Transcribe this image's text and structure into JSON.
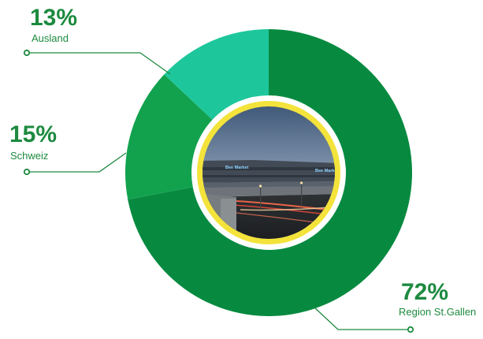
{
  "colors": {
    "dark_green": "#078a40",
    "mid_green": "#12a24e",
    "teal_green": "#1ec79b",
    "label_green": "#1d8a3f",
    "ring_yellow": "#f3e33b"
  },
  "center_image": {
    "icon": "stadium-night-photo",
    "signs": [
      "Bee Market",
      "Bee Market"
    ]
  },
  "chart_data": {
    "type": "pie",
    "categories": [
      "Region St.Gallen",
      "Schweiz",
      "Ausland"
    ],
    "values": [
      72,
      15,
      13
    ],
    "series": [
      {
        "name": "Region St.Gallen",
        "value": 72,
        "display": "72%",
        "color": "#078a40"
      },
      {
        "name": "Schweiz",
        "value": 15,
        "display": "15%",
        "color": "#12a24e"
      },
      {
        "name": "Ausland",
        "value": 13,
        "display": "13%",
        "color": "#1ec79b"
      }
    ],
    "title": "",
    "legend": "none"
  }
}
